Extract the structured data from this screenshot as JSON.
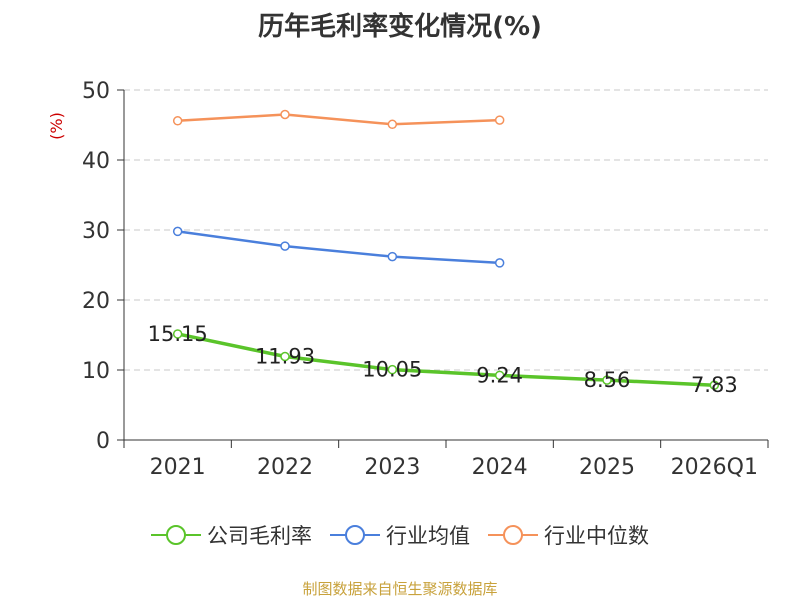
{
  "chart_data": {
    "type": "line",
    "title": "历年毛利率变化情况(%)",
    "ylabel": "(%)",
    "xlabel": "",
    "categories": [
      "2021",
      "2022",
      "2023",
      "2024",
      "2025",
      "2026Q1"
    ],
    "ylim": [
      0,
      50
    ],
    "yticks": [
      0,
      10,
      20,
      30,
      40,
      50
    ],
    "grid": true,
    "legend_position": "bottom",
    "series": [
      {
        "name": "公司毛利率",
        "color": "#5ac42a",
        "values": [
          15.15,
          11.93,
          10.05,
          9.24,
          8.56,
          7.83
        ],
        "labels": [
          "15.15",
          "11.93",
          "10.05",
          "9.24",
          "8.56",
          "7.83"
        ]
      },
      {
        "name": "行业均值",
        "color": "#4a7fdc",
        "values": [
          29.8,
          27.7,
          26.2,
          25.3,
          null,
          null
        ]
      },
      {
        "name": "行业中位数",
        "color": "#f5925a",
        "values": [
          45.6,
          46.5,
          45.1,
          45.7,
          null,
          null
        ]
      }
    ]
  },
  "footer": {
    "source": "制图数据来自恒生聚源数据库"
  }
}
